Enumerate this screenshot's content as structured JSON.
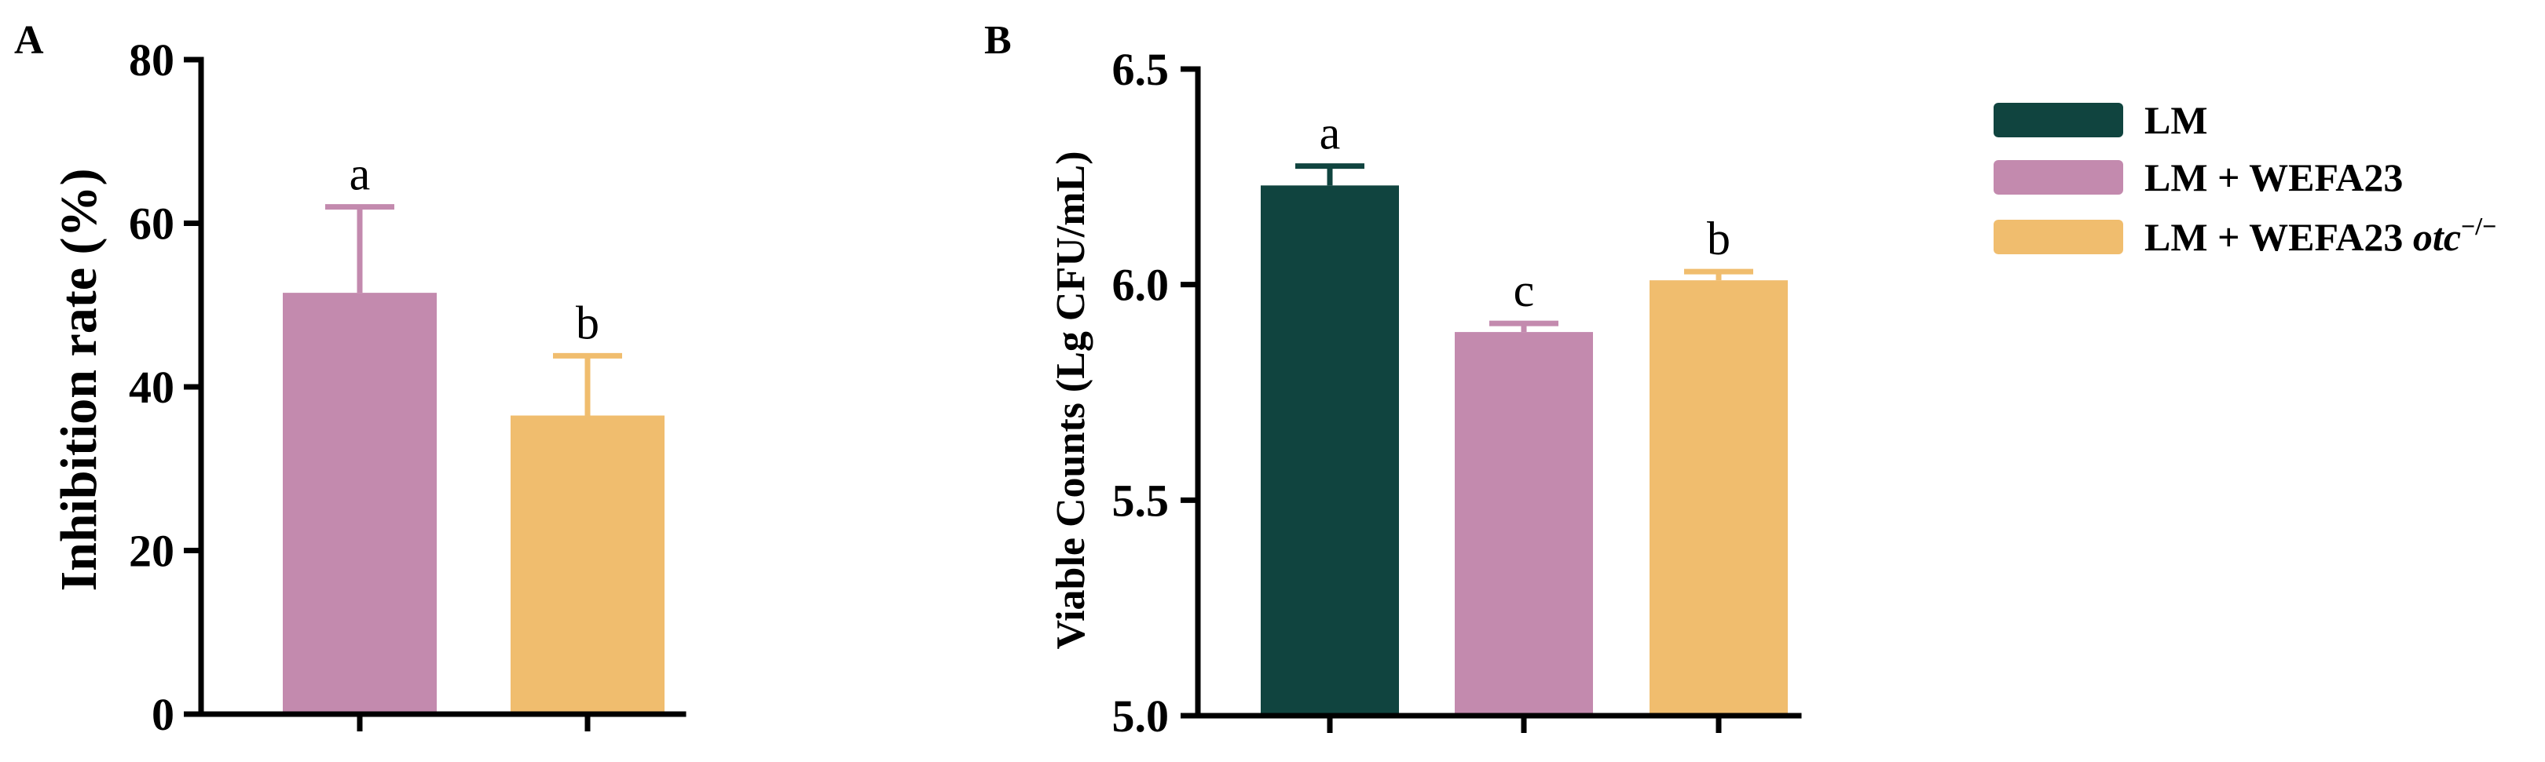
{
  "legend": {
    "items": [
      {
        "label": "LM",
        "color": "#10443f"
      },
      {
        "label": "LM + WEFA23",
        "color": "#c38aae"
      },
      {
        "label": "LM + WEFA23 ",
        "label_italic": "otc",
        "label_sup": "−/−",
        "color": "#f0bd6e"
      }
    ]
  },
  "chart_data": [
    {
      "type": "bar",
      "panel": "A",
      "ylabel": "Inhibition rate (%)",
      "ylim": [
        0,
        80
      ],
      "yticks": [
        0,
        20,
        40,
        60,
        80
      ],
      "series": [
        {
          "group": "LM + WEFA23",
          "value": 51.5,
          "error": 10.5,
          "letter": "a",
          "color": "#c38aae"
        },
        {
          "group": "LM + WEFA23 otc−/−",
          "value": 36.5,
          "error": 7.3,
          "letter": "b",
          "color": "#f0bd6e"
        }
      ]
    },
    {
      "type": "bar",
      "panel": "B",
      "ylabel": "Viable Counts (Lg CFU/mL)",
      "ylim": [
        5.0,
        6.5
      ],
      "yticks": [
        "5.0",
        "5.5",
        "6.0",
        "6.5"
      ],
      "series": [
        {
          "group": "LM",
          "value": 6.23,
          "error": 0.045,
          "letter": "a",
          "color": "#10443f"
        },
        {
          "group": "LM + WEFA23",
          "value": 5.89,
          "error": 0.02,
          "letter": "c",
          "color": "#c38aae"
        },
        {
          "group": "LM + WEFA23 otc−/−",
          "value": 6.01,
          "error": 0.02,
          "letter": "b",
          "color": "#f0bd6e"
        }
      ]
    }
  ]
}
